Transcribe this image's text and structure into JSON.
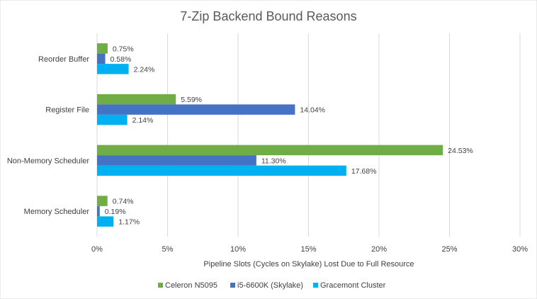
{
  "chart_data": {
    "type": "bar",
    "orientation": "horizontal",
    "title": "7-Zip Backend Bound Reasons",
    "xlabel": "Pipeline Slots (Cycles on Skylake) Lost Due to Full Resource",
    "ylabel": "",
    "xlim": [
      0,
      30
    ],
    "x_ticks": [
      0,
      5,
      10,
      15,
      20,
      25,
      30
    ],
    "tick_suffix": "%",
    "grid": true,
    "legend_position": "bottom",
    "categories": [
      "Reorder Buffer",
      "Register File",
      "Non-Memory Scheduler",
      "Memory Scheduler"
    ],
    "series": [
      {
        "name": "Celeron N5095",
        "color": "#70ad47",
        "values": [
          0.75,
          5.59,
          24.53,
          0.74
        ],
        "labels": [
          "0.75%",
          "5.59%",
          "24.53%",
          "0.74%"
        ]
      },
      {
        "name": "i5-6600K (Skylake)",
        "color": "#4472c4",
        "values": [
          0.58,
          14.04,
          11.3,
          0.19
        ],
        "labels": [
          "0.58%",
          "14.04%",
          "11.30%",
          "0.19%"
        ]
      },
      {
        "name": "Gracemont Cluster",
        "color": "#00b0f0",
        "values": [
          2.24,
          2.14,
          17.68,
          1.17
        ],
        "labels": [
          "2.24%",
          "2.14%",
          "17.68%",
          "1.17%"
        ]
      }
    ]
  }
}
